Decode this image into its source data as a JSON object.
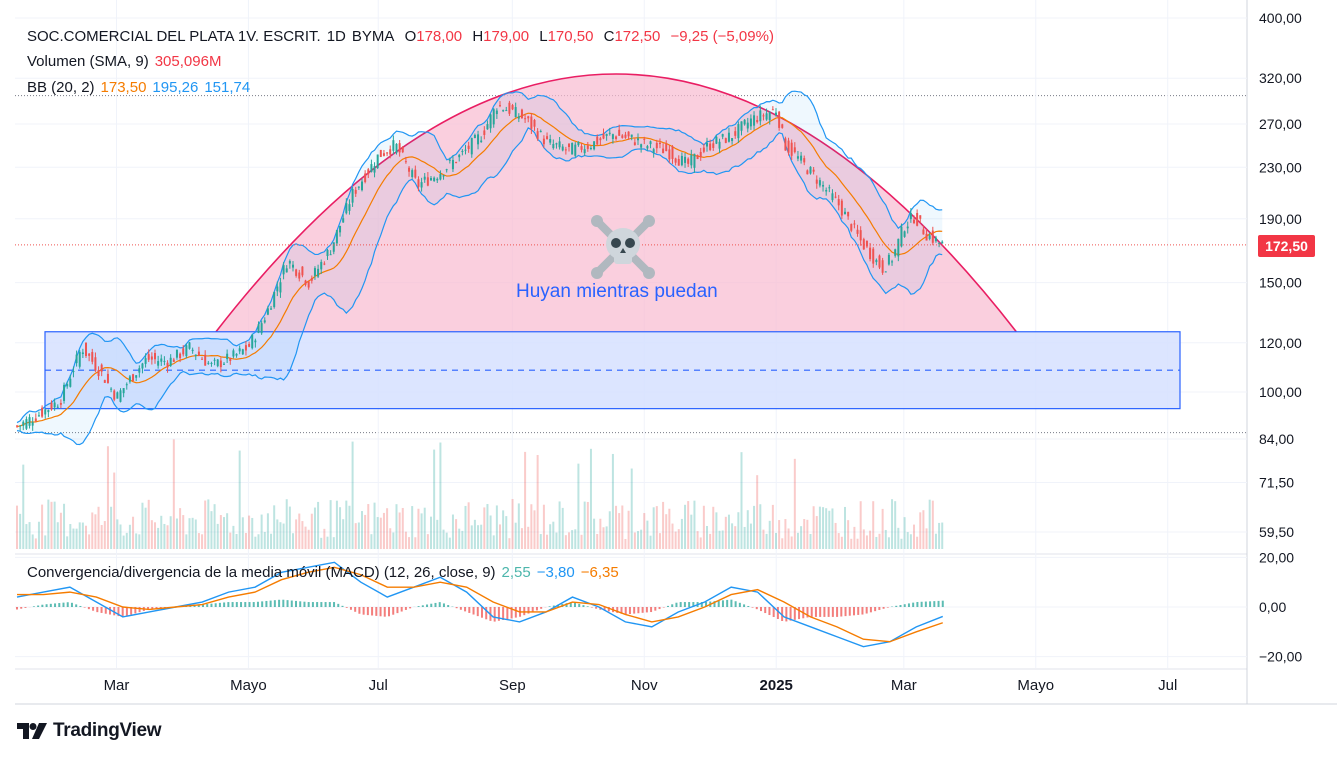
{
  "legend": {
    "symbol": "SOC.COMERCIAL DEL PLATA 1V. ESCRIT.",
    "interval": "1D",
    "exchange": "BYMA",
    "open_label": "O",
    "open": "178,00",
    "high_label": "H",
    "high": "179,00",
    "low_label": "L",
    "low": "170,50",
    "close_label": "C",
    "close": "172,50",
    "change": "−9,25 (−5,09%)",
    "volume_label": "Volumen (SMA, 9)",
    "volume_value": "305,096M",
    "bb_label": "BB (20, 2)",
    "bb_basis": "173,50",
    "bb_upper": "195,26",
    "bb_lower": "151,74"
  },
  "macd_legend": {
    "label": "Convergencia/divergencia de la media móvil (MACD) (12, 26, close, 9)",
    "histogram": "2,55",
    "macd": "−3,80",
    "signal": "−6,35"
  },
  "annotation": {
    "text": "Huyan mientras puedan",
    "icon": "skull-crossbones-icon"
  },
  "last_price_tag": "172,50",
  "brand": "TradingView",
  "colors": {
    "up": "#26a69a",
    "down": "#ef5350",
    "bb_basis": "#f57c00",
    "bb_band": "#2196f3",
    "arc": "#e91e63",
    "arc_fill": "#f8bbd0",
    "rect_fill": "#d6e0ff",
    "rect_line": "#2962ff",
    "macd": "#2196f3",
    "signal": "#f57c00"
  },
  "chart_data": [
    {
      "type": "line",
      "name": "price",
      "scale": "log",
      "y_ticks": [
        "400,00",
        "320,00",
        "270,00",
        "230,00",
        "190,00",
        "150,00",
        "120,00",
        "100,00",
        "84,00",
        "71,50",
        "59,50"
      ],
      "y_tick_values": [
        400,
        320,
        270,
        230,
        190,
        150,
        120,
        100,
        84,
        71.5,
        59.5
      ],
      "x_ticks": [
        "Mar",
        "Mayo",
        "Jul",
        "Sep",
        "Nov",
        "2025",
        "Mar",
        "Mayo",
        "Jul"
      ],
      "x_tick_days": [
        46,
        107,
        167,
        229,
        290,
        351,
        410,
        471,
        532
      ],
      "close_series_days": [
        0,
        10,
        20,
        30,
        40,
        46,
        55,
        60,
        70,
        80,
        90,
        100,
        107,
        115,
        125,
        135,
        145,
        155,
        167,
        175,
        185,
        195,
        205,
        215,
        222,
        229,
        235,
        245,
        255,
        265,
        275,
        285,
        290,
        300,
        310,
        320,
        330,
        340,
        351,
        355,
        360,
        370,
        380,
        390,
        400,
        405,
        410,
        415,
        420,
        425,
        428
      ],
      "close_series": [
        88,
        92,
        97,
        118,
        106,
        98,
        108,
        113,
        112,
        118,
        110,
        114,
        118,
        133,
        163,
        150,
        170,
        208,
        240,
        250,
        215,
        225,
        240,
        260,
        290,
        283,
        275,
        252,
        245,
        250,
        260,
        255,
        250,
        245,
        232,
        250,
        258,
        275,
        285,
        250,
        240,
        220,
        200,
        175,
        158,
        165,
        185,
        192,
        180,
        175,
        172.5
      ],
      "volume": {
        "sma_value": "305,096M"
      },
      "bollinger": {
        "period": 20,
        "stddev": 2,
        "basis": 173.5,
        "upper": 195.26,
        "lower": 151.74
      },
      "rectangle_zone": {
        "top": 125,
        "bottom": 94
      },
      "arc_zone": {
        "peak": 325,
        "start_day": 92,
        "end_day": 462
      },
      "last_price": 172.5
    },
    {
      "type": "line",
      "name": "macd",
      "y_ticks": [
        "20,00",
        "0,00",
        "−20,00"
      ],
      "y_tick_values": [
        20,
        0,
        -20
      ],
      "series": [
        {
          "name": "MACD",
          "values": [
            4,
            6,
            8,
            2,
            -4,
            -2,
            0,
            2,
            6,
            8,
            14,
            16,
            18,
            10,
            4,
            8,
            12,
            6,
            -4,
            -6,
            -2,
            4,
            0,
            -6,
            -8,
            -2,
            2,
            8,
            6,
            -4,
            -8,
            -12,
            -16,
            -14,
            -8,
            -3.8
          ]
        },
        {
          "name": "Signal",
          "values": [
            5,
            5,
            6,
            4,
            0,
            -1,
            0,
            1,
            4,
            6,
            11,
            14,
            16,
            13,
            8,
            8,
            10,
            8,
            2,
            -2,
            -2,
            2,
            1,
            -3,
            -6,
            -4,
            0,
            5,
            7,
            2,
            -4,
            -8,
            -13,
            -14,
            -10,
            -6.35
          ]
        }
      ],
      "histogram": [
        -1,
        1,
        2,
        -2,
        -4,
        -1,
        0,
        1,
        2,
        2,
        3,
        2,
        2,
        -3,
        -4,
        0,
        2,
        -2,
        -6,
        -4,
        0,
        2,
        -1,
        -3,
        -2,
        2,
        2,
        3,
        -1,
        -6,
        -4,
        -4,
        -3,
        0,
        2,
        2.55
      ]
    }
  ]
}
